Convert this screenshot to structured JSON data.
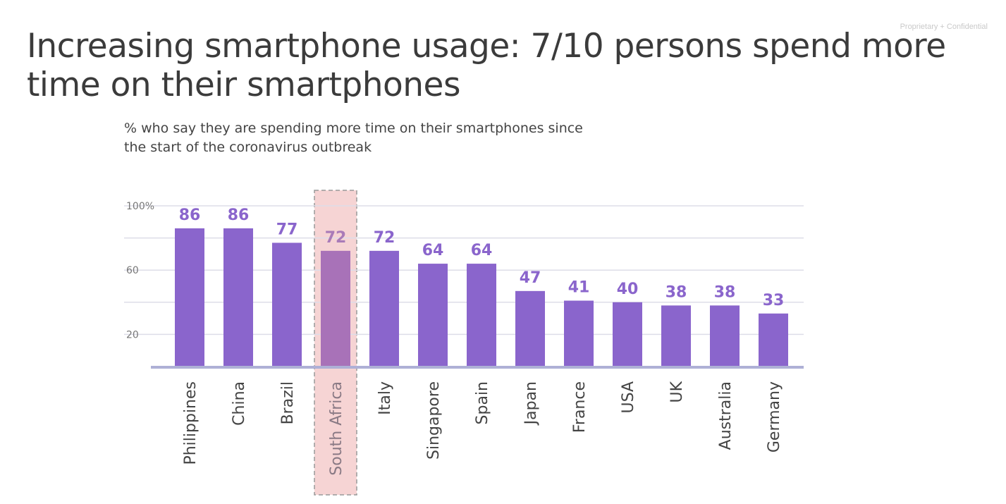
{
  "slide": {
    "title": "Increasing smartphone usage: 7/10 persons spend more time on their smartphones",
    "confidential": "Proprietary + Confidential"
  },
  "colors": {
    "bar": "#8a65cc",
    "bar_highlight": "#a872b8",
    "label": "#8a65cc",
    "label_highlight": "#a97bb8",
    "cat_text": "#444444",
    "cat_text_highlight": "#8a7a85",
    "highlight_fill": "#f6d4d4",
    "highlight_stroke": "#999999",
    "grid": "#dddde8",
    "baseline": "#aeb0d6"
  },
  "chart_data": {
    "type": "bar",
    "title": "% who say they are spending more time on their smartphones since the start of the coronavirus outbreak",
    "title_lines": [
      "% who say they are spending more time on their smartphones since",
      "the start of the coronavirus outbreak"
    ],
    "categories": [
      "Philippines",
      "China",
      "Brazil",
      "South Africa",
      "Italy",
      "Singapore",
      "Spain",
      "Japan",
      "France",
      "USA",
      "UK",
      "Australia",
      "Germany"
    ],
    "values": [
      86,
      86,
      77,
      72,
      72,
      64,
      64,
      47,
      41,
      40,
      38,
      38,
      33
    ],
    "y_ticks": [
      20,
      60,
      100
    ],
    "y_tick_labels": [
      "20",
      "60",
      "100%"
    ],
    "y_gridlines": [
      20,
      40,
      60,
      80,
      100
    ],
    "ylim": [
      0,
      100
    ],
    "highlight_category": "South Africa",
    "xlabel": "",
    "ylabel": ""
  }
}
